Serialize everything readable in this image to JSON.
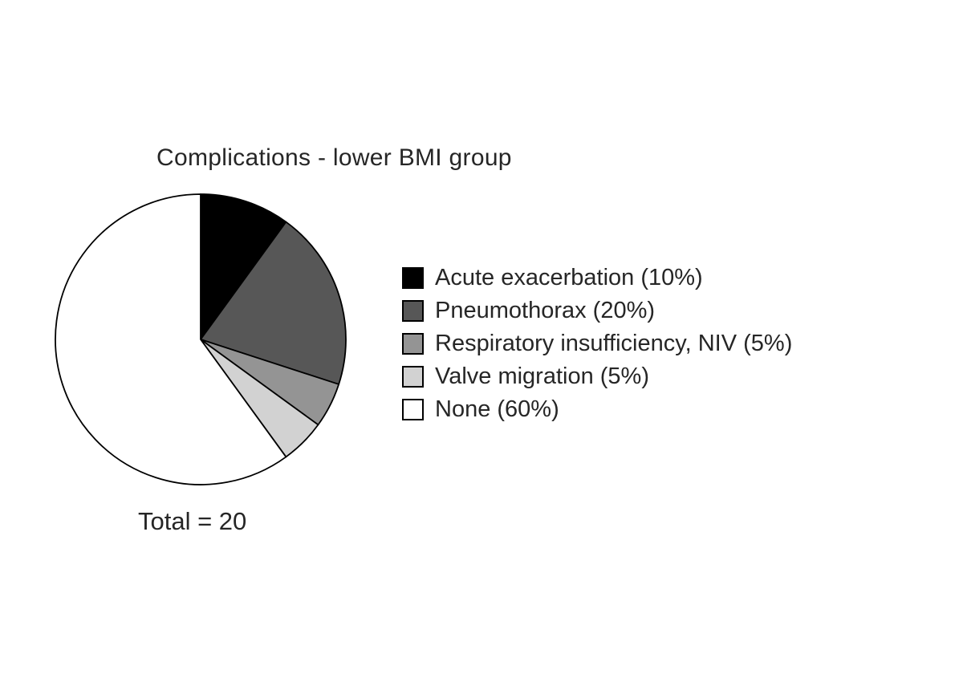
{
  "chart_data": {
    "type": "pie",
    "title": "Complications - lower BMI group",
    "total_label": "Total = 20",
    "total_shown": "20",
    "direction": "clockwise",
    "start_position": "12-o-clock",
    "legend_position": "right",
    "stroke_color": "#000000",
    "background_color": "#ffffff",
    "slices": [
      {
        "label": "Acute exacerbation",
        "pct": 10,
        "color": "#000000",
        "legend_label": "Acute exacerbation (10%)"
      },
      {
        "label": "Pneumothorax",
        "pct": 20,
        "color": "#575757",
        "legend_label": "Pneumothorax (20%)"
      },
      {
        "label": "Respiratory insufficiency, NIV",
        "pct": 5,
        "color": "#949494",
        "legend_label": "Respiratory insufficiency, NIV (5%)"
      },
      {
        "label": "Valve migration",
        "pct": 5,
        "color": "#d2d2d2",
        "legend_label": "Valve migration (5%)"
      },
      {
        "label": "None",
        "pct": 60,
        "color": "#ffffff",
        "legend_label": "None (60%)"
      }
    ]
  }
}
